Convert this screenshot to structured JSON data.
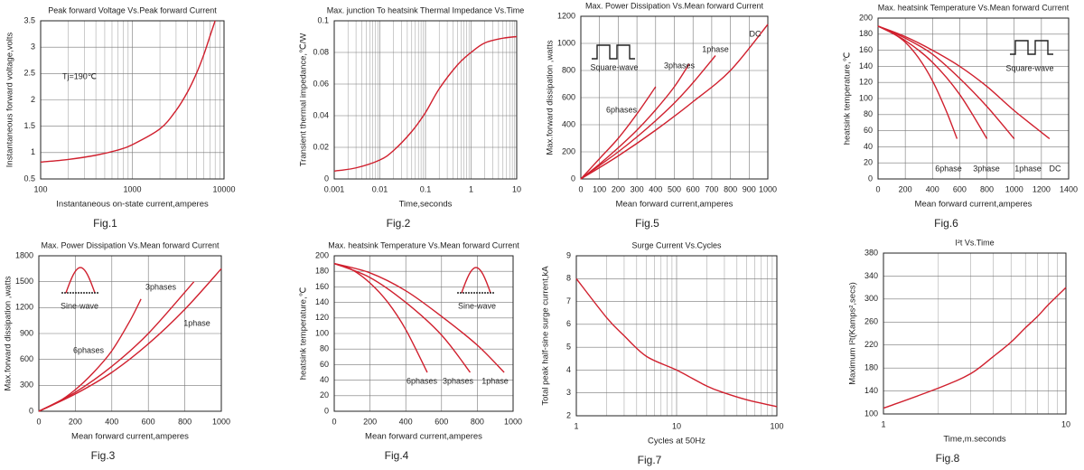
{
  "chart_data": [
    {
      "type": "line",
      "title": "Peak forward Voltage Vs.Peak forward Current",
      "caption": "Fig.1",
      "xlabel": "Instantaneous on-state current,amperes",
      "ylabel": "Instantaneous forward voltage,volts",
      "xscale": "log",
      "xlim": [
        100,
        10000
      ],
      "xticks": [
        100,
        1000,
        10000
      ],
      "xminor": [
        200,
        300,
        400,
        500,
        600,
        700,
        800,
        900,
        2000,
        3000,
        4000,
        5000,
        6000,
        7000,
        8000,
        9000
      ],
      "ylim": [
        0.5,
        3.5
      ],
      "yticks": [
        0.5,
        1,
        1.5,
        2,
        2.5,
        3,
        3.5
      ],
      "grid": true,
      "color": "#d0202e",
      "x": [
        100,
        200,
        400,
        700,
        1000,
        2000,
        3000,
        4000,
        5000,
        6000,
        7000,
        8000
      ],
      "values": [
        0.82,
        0.87,
        0.95,
        1.05,
        1.15,
        1.45,
        1.8,
        2.15,
        2.5,
        2.85,
        3.2,
        3.5
      ],
      "annotation": "Tj=190℃"
    },
    {
      "type": "line",
      "title": "Max. junction To heatsink Thermal Impedance Vs.Time",
      "caption": "Fig.2",
      "xlabel": "Time,seconds",
      "ylabel": "Transient thermal impedance,℃/W",
      "xscale": "log",
      "xlim": [
        0.001,
        10
      ],
      "xticks": [
        0.001,
        0.01,
        0.1,
        1,
        10
      ],
      "xminor": [
        0.002,
        0.003,
        0.004,
        0.005,
        0.006,
        0.007,
        0.008,
        0.009,
        0.02,
        0.03,
        0.04,
        0.05,
        0.06,
        0.07,
        0.08,
        0.09,
        0.2,
        0.3,
        0.4,
        0.5,
        0.6,
        0.7,
        0.8,
        0.9,
        2,
        3,
        4,
        5,
        6,
        7,
        8,
        9
      ],
      "ylim": [
        0,
        0.1
      ],
      "yticks": [
        0,
        0.02,
        0.04,
        0.06,
        0.08,
        0.1
      ],
      "grid": true,
      "color": "#d0202e",
      "x": [
        0.001,
        0.003,
        0.01,
        0.02,
        0.05,
        0.1,
        0.2,
        0.5,
        1,
        2,
        5,
        10
      ],
      "values": [
        0.005,
        0.007,
        0.012,
        0.018,
        0.03,
        0.042,
        0.057,
        0.072,
        0.08,
        0.086,
        0.089,
        0.09
      ]
    },
    {
      "type": "line",
      "title": "Max. Power Dissipation Vs.Mean forward Current",
      "caption": "Fig.5",
      "xlabel": "Mean forward current,amperes",
      "ylabel": "Max.forward dissipation ,watts",
      "xscale": "linear",
      "xlim": [
        0,
        1000
      ],
      "xticks": [
        0,
        100,
        200,
        300,
        400,
        500,
        600,
        700,
        800,
        900,
        1000
      ],
      "ylim": [
        0,
        1200
      ],
      "yticks": [
        0,
        200,
        400,
        600,
        800,
        1000,
        1200
      ],
      "grid": true,
      "annotation": "Square-wave",
      "series": [
        {
          "name": "6phases",
          "color": "#d0202e",
          "x": [
            0,
            100,
            200,
            300,
            400
          ],
          "values": [
            0,
            150,
            300,
            480,
            680
          ]
        },
        {
          "name": "3phases",
          "color": "#d0202e",
          "x": [
            0,
            100,
            200,
            300,
            400,
            500,
            580
          ],
          "values": [
            0,
            110,
            230,
            360,
            510,
            680,
            850
          ]
        },
        {
          "name": "1phase",
          "color": "#d0202e",
          "x": [
            0,
            100,
            200,
            300,
            400,
            500,
            600,
            720
          ],
          "values": [
            0,
            100,
            200,
            310,
            430,
            560,
            710,
            910
          ]
        },
        {
          "name": "DC",
          "color": "#d0202e",
          "x": [
            0,
            200,
            400,
            600,
            800,
            1000
          ],
          "values": [
            0,
            170,
            360,
            570,
            800,
            1140
          ]
        }
      ]
    },
    {
      "type": "line",
      "title": "Max. heatsink Temperature Vs.Mean forward Current",
      "caption": "Fig.6",
      "xlabel": "Mean forward current,amperes",
      "ylabel": "heatsink temperature,℃",
      "xscale": "linear",
      "xlim": [
        0,
        1400
      ],
      "xticks": [
        0,
        200,
        400,
        600,
        800,
        1000,
        1200,
        1400
      ],
      "ylim": [
        0,
        200
      ],
      "yticks": [
        0,
        20,
        40,
        60,
        80,
        100,
        120,
        140,
        160,
        180,
        200
      ],
      "grid": true,
      "annotation": "Square-wave",
      "series": [
        {
          "name": "6phase",
          "color": "#d0202e",
          "x": [
            0,
            100,
            200,
            300,
            400,
            500,
            580
          ],
          "values": [
            190,
            182,
            170,
            150,
            122,
            85,
            50
          ]
        },
        {
          "name": "3phase",
          "color": "#d0202e",
          "x": [
            0,
            200,
            400,
            600,
            800
          ],
          "values": [
            190,
            172,
            145,
            105,
            50
          ]
        },
        {
          "name": "1phase",
          "color": "#d0202e",
          "x": [
            0,
            200,
            400,
            600,
            800,
            1000
          ],
          "values": [
            190,
            175,
            155,
            125,
            90,
            50
          ]
        },
        {
          "name": "DC",
          "color": "#d0202e",
          "x": [
            0,
            200,
            400,
            600,
            800,
            1000,
            1260
          ],
          "values": [
            190,
            177,
            160,
            140,
            115,
            85,
            50
          ]
        }
      ]
    },
    {
      "type": "line",
      "title": "Max. Power Dissipation Vs.Mean forward Current",
      "caption": "Fig.3",
      "xlabel": "Mean forward current,amperes",
      "ylabel": "Max.forward dissipation ,watts",
      "xscale": "linear",
      "xlim": [
        0,
        1000
      ],
      "xticks": [
        0,
        200,
        400,
        600,
        800,
        1000
      ],
      "ylim": [
        0,
        1800
      ],
      "yticks": [
        0,
        300,
        600,
        900,
        1200,
        1500,
        1800
      ],
      "grid": true,
      "annotation": "Sine-wave",
      "series": [
        {
          "name": "6phases",
          "color": "#d0202e",
          "x": [
            0,
            100,
            200,
            300,
            400,
            500,
            560
          ],
          "values": [
            0,
            100,
            250,
            450,
            700,
            1050,
            1300
          ]
        },
        {
          "name": "3phases",
          "color": "#d0202e",
          "x": [
            0,
            200,
            400,
            600,
            850
          ],
          "values": [
            0,
            220,
            520,
            900,
            1500
          ]
        },
        {
          "name": "1phase",
          "color": "#d0202e",
          "x": [
            0,
            200,
            400,
            600,
            800,
            1000
          ],
          "values": [
            0,
            200,
            450,
            780,
            1180,
            1650
          ]
        }
      ]
    },
    {
      "type": "line",
      "title": "Max. heatsink Temperature Vs.Mean forward Current",
      "caption": "Fig.4",
      "xlabel": "Mean forward current,amperes",
      "ylabel": "heatsink temperature,℃",
      "xscale": "linear",
      "xlim": [
        0,
        1000
      ],
      "xticks": [
        0,
        200,
        400,
        600,
        800,
        1000
      ],
      "ylim": [
        0,
        200
      ],
      "yticks": [
        0,
        20,
        40,
        60,
        80,
        100,
        120,
        140,
        160,
        180,
        200
      ],
      "grid": true,
      "annotation": "Sine-wave",
      "series": [
        {
          "name": "6phases",
          "color": "#d0202e",
          "x": [
            0,
            100,
            200,
            300,
            400,
            520
          ],
          "values": [
            190,
            182,
            165,
            140,
            105,
            50
          ]
        },
        {
          "name": "3phases",
          "color": "#d0202e",
          "x": [
            0,
            200,
            400,
            600,
            760
          ],
          "values": [
            190,
            172,
            140,
            98,
            50
          ]
        },
        {
          "name": "1phase",
          "color": "#d0202e",
          "x": [
            0,
            200,
            400,
            600,
            800,
            950
          ],
          "values": [
            190,
            178,
            155,
            122,
            85,
            50
          ]
        }
      ]
    },
    {
      "type": "line",
      "title": "Surge Current Vs.Cycles",
      "caption": "Fig.7",
      "xlabel": "Cycles at 50Hz",
      "ylabel": "Total peak half-sine surge current,kA",
      "xscale": "log",
      "xlim": [
        1,
        100
      ],
      "xticks": [
        1,
        10,
        100
      ],
      "xminor": [
        2,
        3,
        4,
        5,
        6,
        7,
        8,
        9,
        20,
        30,
        40,
        50,
        60,
        70,
        80,
        90
      ],
      "ylim": [
        2,
        9
      ],
      "yticks": [
        2,
        3,
        4,
        5,
        6,
        7,
        8,
        9
      ],
      "grid": true,
      "color": "#d0202e",
      "x": [
        1,
        2,
        3,
        5,
        10,
        20,
        30,
        50,
        100
      ],
      "values": [
        8,
        6.3,
        5.5,
        4.6,
        4,
        3.3,
        3,
        2.7,
        2.4
      ]
    },
    {
      "type": "line",
      "title": "I²t Vs.Time",
      "caption": "Fig.8",
      "xlabel": "Time,m.seconds",
      "ylabel": "Maximum I²t(Kamps²,secs)",
      "xscale": "log",
      "xlim": [
        1,
        10
      ],
      "xticks": [
        1,
        10
      ],
      "xminor": [
        2,
        3,
        4,
        5,
        6,
        7,
        8,
        9
      ],
      "ylim": [
        100,
        380
      ],
      "yticks": [
        100,
        140,
        180,
        220,
        260,
        300,
        340,
        380
      ],
      "grid": true,
      "color": "#d0202e",
      "x": [
        1,
        2,
        3,
        4,
        5,
        6,
        7,
        8,
        10
      ],
      "values": [
        110,
        145,
        170,
        200,
        225,
        250,
        270,
        290,
        320
      ]
    }
  ]
}
